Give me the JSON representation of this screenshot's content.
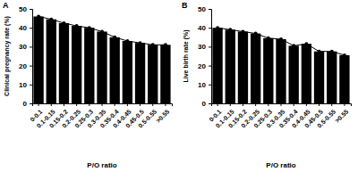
{
  "chart_data": [
    {
      "type": "bar",
      "title": "A",
      "x_label": "P/O ratio",
      "y_label": "Clinical pregnancy rate (%)",
      "categories": [
        "0-0.1",
        "0.1-0.15",
        "0.15-0.2",
        "0.2-0.25",
        "0.25-0.3",
        "0.3-0.35",
        "0.35-0.4",
        "0.4-0.45",
        "0.45-0.5",
        "0.5-0.55",
        ">0.55"
      ],
      "values": [
        46,
        44.5,
        42.5,
        41,
        40,
        38,
        35,
        33,
        32,
        31,
        31
      ],
      "color": "#000000",
      "marker": "circle",
      "line_style": "solid",
      "ylim": [
        0,
        50
      ],
      "yticks": [
        0,
        10,
        20,
        30,
        40,
        50
      ],
      "grid": false
    },
    {
      "type": "bar",
      "title": "B",
      "x_label": "P/O ratio",
      "y_label": "Live birth rate (%)",
      "categories": [
        "0-0.1",
        "0.1-0.15",
        "0.15-0.2",
        "0.2-0.25",
        "0.25-0.3",
        "0.3-0.35",
        "0.35-0.4",
        "0.4-0.45",
        "0.45-0.5",
        "0.5-0.55",
        ">0.55"
      ],
      "values": [
        40,
        39,
        38,
        37,
        34.5,
        34,
        30.5,
        31.5,
        27.5,
        27.5,
        25.5
      ],
      "color": "#000000",
      "marker": "circle",
      "line_style": "solid",
      "ylim": [
        0,
        50
      ],
      "yticks": [
        0,
        10,
        20,
        30,
        40,
        50
      ],
      "grid": false
    }
  ]
}
